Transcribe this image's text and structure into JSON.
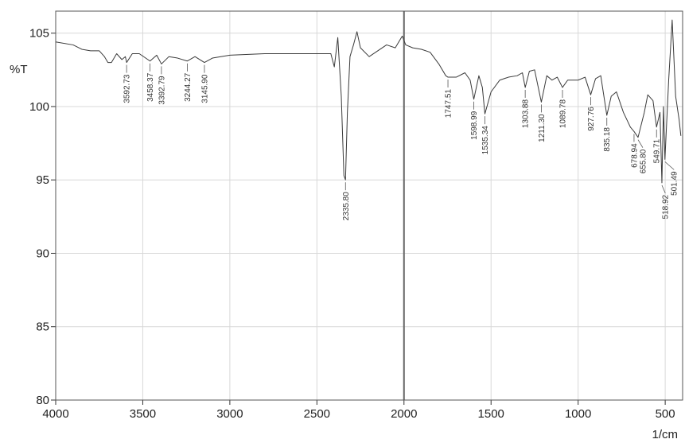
{
  "chart_data": {
    "type": "line",
    "x_label": "1/cm",
    "y_label": "%T",
    "xlim": [
      4000,
      400
    ],
    "ylim": [
      80,
      106.5
    ],
    "xticks": [
      4000,
      3500,
      3000,
      2500,
      2000,
      1500,
      1000,
      500
    ],
    "yticks": [
      80,
      85,
      90,
      95,
      100,
      105
    ],
    "grid": true,
    "xline": 2000,
    "x": [
      4000,
      3900,
      3850,
      3800,
      3750,
      3720,
      3700,
      3680,
      3650,
      3620,
      3600,
      3592.73,
      3560,
      3520,
      3458.37,
      3420,
      3392.79,
      3350,
      3300,
      3244.27,
      3200,
      3145.9,
      3100,
      3000,
      2800,
      2600,
      2420,
      2400,
      2380,
      2360,
      2345,
      2335.8,
      2325,
      2310,
      2290,
      2270,
      2250,
      2200,
      2150,
      2100,
      2050,
      2010,
      1990,
      1950,
      1900,
      1850,
      1800,
      1760,
      1747.51,
      1700,
      1650,
      1620,
      1598.99,
      1570,
      1550,
      1535.34,
      1500,
      1450,
      1400,
      1350,
      1320,
      1303.88,
      1280,
      1250,
      1211.3,
      1180,
      1150,
      1120,
      1089.78,
      1060,
      1000,
      960,
      927.76,
      900,
      870,
      835.18,
      810,
      780,
      740,
      700,
      678.94,
      655.8,
      620,
      600,
      570,
      549.71,
      530,
      518.92,
      510,
      501.49,
      480,
      460,
      440,
      420,
      410
    ],
    "series": [
      {
        "color": "#3a3a3a",
        "values": [
          104.4,
          104.2,
          103.9,
          103.8,
          103.8,
          103.4,
          103.0,
          103.0,
          103.6,
          103.2,
          103.4,
          103.0,
          103.6,
          103.6,
          103.1,
          103.5,
          102.9,
          103.4,
          103.3,
          103.1,
          103.4,
          103.0,
          103.3,
          103.5,
          103.6,
          103.6,
          103.6,
          102.7,
          104.7,
          100.7,
          95.3,
          95.0,
          99.6,
          103.4,
          104.2,
          105.1,
          104.0,
          103.4,
          103.8,
          104.2,
          104.0,
          104.8,
          104.2,
          104.0,
          103.9,
          103.7,
          102.9,
          102.1,
          102.0,
          102.0,
          102.3,
          101.8,
          100.5,
          102.1,
          101.3,
          99.5,
          101.0,
          101.8,
          102.0,
          102.1,
          102.3,
          101.3,
          102.4,
          102.5,
          100.3,
          102.1,
          101.8,
          102.0,
          101.3,
          101.8,
          101.8,
          102.0,
          100.8,
          101.9,
          102.1,
          99.4,
          100.7,
          101.0,
          99.6,
          98.6,
          98.3,
          97.9,
          99.6,
          100.8,
          100.4,
          98.6,
          99.6,
          94.8,
          100.0,
          96.4,
          101.8,
          105.9,
          100.7,
          99.1,
          98.0
        ]
      }
    ],
    "peaks": [
      {
        "x": 3592.73,
        "label": "3592.73"
      },
      {
        "x": 3458.37,
        "label": "3458.37"
      },
      {
        "x": 3392.79,
        "label": "3392.79"
      },
      {
        "x": 3244.27,
        "label": "3244.27"
      },
      {
        "x": 3145.9,
        "label": "3145.90"
      },
      {
        "x": 2335.8,
        "label": "2335.80"
      },
      {
        "x": 1747.51,
        "label": "1747.51"
      },
      {
        "x": 1598.99,
        "label": "1598.99"
      },
      {
        "x": 1535.34,
        "label": "1535.34"
      },
      {
        "x": 1303.88,
        "label": "1303.88"
      },
      {
        "x": 1211.3,
        "label": "1211.30"
      },
      {
        "x": 1089.78,
        "label": "1089.78"
      },
      {
        "x": 927.76,
        "label": "927.76"
      },
      {
        "x": 835.18,
        "label": "835.18"
      },
      {
        "x": 678.94,
        "label": "678.94"
      },
      {
        "x": 655.8,
        "label": "655.80"
      },
      {
        "x": 549.71,
        "label": "549.71"
      },
      {
        "x": 518.92,
        "label": "518.92"
      },
      {
        "x": 501.49,
        "label": "501.49"
      }
    ]
  }
}
